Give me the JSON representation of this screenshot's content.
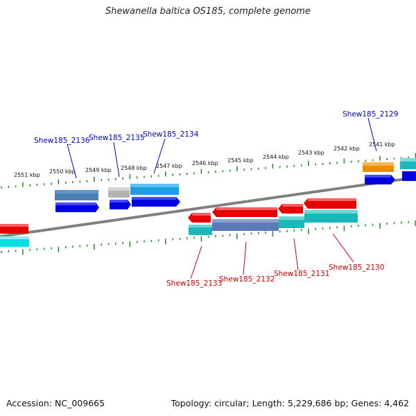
{
  "title": "Shewanella baltica OS185, complete genome",
  "footer": {
    "accession": "Accession: NC_009665",
    "topology": "Topology: circular; Length: 5,229,686 bp; Genes: 4,462"
  },
  "scale": {
    "unit": "kbp",
    "ticks": [
      "2551 kbp",
      "2550 kbp",
      "2549 kbp",
      "2548 kbp",
      "2547 kbp",
      "2546 kbp",
      "2545 kbp",
      "2544 kbp",
      "2543 kbp",
      "2542 kbp",
      "2541 kbp"
    ]
  },
  "colors": {
    "backbone": "#808080",
    "tick": "#2e8b2e",
    "forward_label": "#0000cc",
    "reverse_label": "#cc0000",
    "gene_blue": "#0000e0",
    "gene_steel": "#4a7fb5",
    "gene_gray": "#b4b4b4",
    "gene_skyblue": "#1aa0e0",
    "gene_orange": "#f08c00",
    "gene_red": "#e80000",
    "gene_teal": "#1ab8b8",
    "gene_cyan": "#00e0e0",
    "gene_slate": "#5a7ab8"
  },
  "genes": {
    "forward": [
      {
        "id": "Shew185_2136",
        "color": "steel"
      },
      {
        "id": "Shew185_2135",
        "color": "gray"
      },
      {
        "id": "Shew185_2134",
        "color": "skyblue"
      },
      {
        "id": "Shew185_2129",
        "color": "orange"
      }
    ],
    "reverse": [
      {
        "id": "Shew185_2133",
        "color": "red"
      },
      {
        "id": "Shew185_2132",
        "color": "red"
      },
      {
        "id": "Shew185_2131",
        "color": "red"
      },
      {
        "id": "Shew185_2130",
        "color": "red"
      }
    ]
  }
}
